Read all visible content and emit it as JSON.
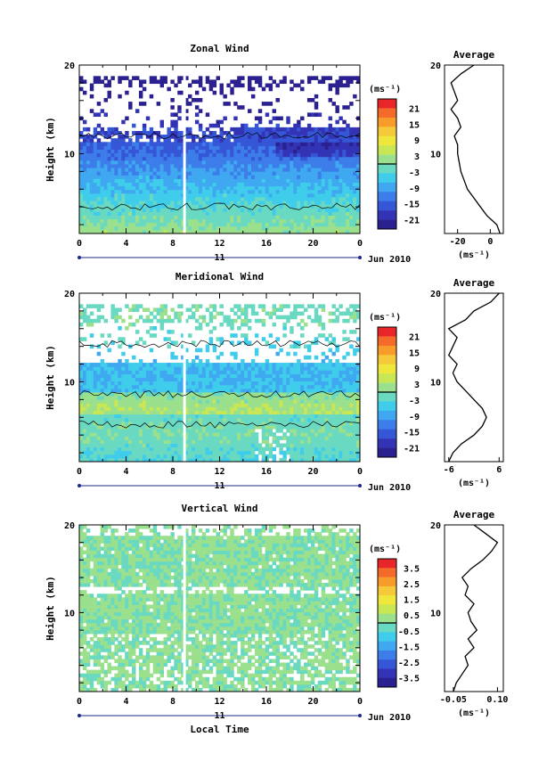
{
  "chart_data": [
    {
      "type": "heatmap",
      "title": "Zonal Wind",
      "ylabel": "Height (km)",
      "ylim": [
        1,
        20
      ],
      "y_ticks": [
        "10",
        "20"
      ],
      "x_ticks": [
        "0",
        "4",
        "8",
        "12",
        "16",
        "20",
        "0"
      ],
      "xlim": [
        0,
        24
      ],
      "date_row": {
        "day": "11",
        "month_year": "Jun 2010"
      },
      "colorbar": {
        "unit": "(ms⁻¹)",
        "ticks": [
          "21",
          "15",
          "9",
          "3",
          "-3",
          "-9",
          "-15",
          "-21"
        ],
        "colors": [
          "#E8262A",
          "#F46A2A",
          "#F79B2A",
          "#F6C93A",
          "#EFE73C",
          "#C9E655",
          "#9AE08D",
          "#6AD9C2",
          "#3FCDEB",
          "#3FA8F0",
          "#3C7DEA",
          "#3556D6",
          "#3334B5",
          "#2A2090"
        ]
      },
      "average_profile": {
        "title": "Average",
        "xlabel": "(ms⁻¹)",
        "x_ticks": [
          "-20",
          "0"
        ],
        "xlim": [
          -28,
          8
        ],
        "y_ticks": [
          "10",
          "20"
        ],
        "height_km": [
          1,
          2,
          3,
          4,
          5,
          6,
          7,
          8,
          9,
          10,
          11,
          12,
          13,
          14,
          15,
          16,
          17,
          18,
          19,
          20
        ],
        "values": [
          6,
          4,
          -2,
          -6,
          -10,
          -14,
          -16,
          -18,
          -19,
          -20,
          -20,
          -22,
          -18,
          -20,
          -24,
          -20,
          -22,
          -24,
          -18,
          -10
        ]
      }
    },
    {
      "type": "heatmap",
      "title": "Meridional Wind",
      "ylabel": "Height (km)",
      "ylim": [
        1,
        20
      ],
      "y_ticks": [
        "10",
        "20"
      ],
      "x_ticks": [
        "0",
        "4",
        "8",
        "12",
        "16",
        "20",
        "0"
      ],
      "xlim": [
        0,
        24
      ],
      "date_row": {
        "day": "11",
        "month_year": "Jun 2010"
      },
      "colorbar": {
        "unit": "(ms⁻¹)",
        "ticks": [
          "21",
          "15",
          "9",
          "3",
          "-3",
          "-9",
          "-15",
          "-21"
        ],
        "colors": [
          "#E8262A",
          "#F46A2A",
          "#F79B2A",
          "#F6C93A",
          "#EFE73C",
          "#C9E655",
          "#9AE08D",
          "#6AD9C2",
          "#3FCDEB",
          "#3FA8F0",
          "#3C7DEA",
          "#3556D6",
          "#3334B5",
          "#2A2090"
        ]
      },
      "average_profile": {
        "title": "Average",
        "xlabel": "(ms⁻¹)",
        "x_ticks": [
          "-6",
          "6"
        ],
        "xlim": [
          -7,
          7
        ],
        "y_ticks": [
          "10",
          "20"
        ],
        "height_km": [
          1,
          2,
          3,
          4,
          5,
          6,
          7,
          8,
          9,
          10,
          11,
          12,
          13,
          14,
          15,
          16,
          17,
          18,
          19,
          20
        ],
        "values": [
          -6,
          -5,
          -3,
          0,
          2,
          3,
          2,
          0,
          -2,
          -4,
          -5,
          -4,
          -6,
          -5,
          -4,
          -6,
          -2,
          0,
          4,
          6
        ]
      }
    },
    {
      "type": "heatmap",
      "title": "Vertical Wind",
      "ylabel": "Height (km)",
      "xlabel": "Local Time",
      "ylim": [
        1,
        20
      ],
      "y_ticks": [
        "10",
        "20"
      ],
      "x_ticks": [
        "0",
        "4",
        "8",
        "12",
        "16",
        "20",
        "0"
      ],
      "xlim": [
        0,
        24
      ],
      "date_row": {
        "day": "11",
        "month_year": "Jun 2010"
      },
      "colorbar": {
        "unit": "(ms⁻¹)",
        "ticks": [
          "3.5",
          "2.5",
          "1.5",
          "0.5",
          "-0.5",
          "-1.5",
          "-2.5",
          "-3.5"
        ],
        "colors": [
          "#E8262A",
          "#F46A2A",
          "#F79B2A",
          "#F6C93A",
          "#EFE73C",
          "#C9E655",
          "#9AE08D",
          "#6AD9C2",
          "#3FCDEB",
          "#3FA8F0",
          "#3C7DEA",
          "#3556D6",
          "#3334B5",
          "#2A2090"
        ]
      },
      "average_profile": {
        "title": "Average",
        "xlabel": "(ms⁻¹)",
        "x_ticks": [
          "-0.05",
          "0.10"
        ],
        "xlim": [
          -0.08,
          0.12
        ],
        "y_ticks": [
          "10",
          "20"
        ],
        "height_km": [
          1,
          2,
          3,
          4,
          5,
          6,
          7,
          8,
          9,
          10,
          11,
          12,
          13,
          14,
          15,
          16,
          17,
          18,
          19,
          20
        ],
        "values": [
          -0.05,
          -0.04,
          -0.02,
          0.0,
          -0.01,
          0.02,
          0.0,
          0.03,
          0.01,
          0.0,
          0.02,
          -0.01,
          0.0,
          -0.02,
          0.01,
          0.05,
          0.08,
          0.1,
          0.06,
          0.02
        ]
      }
    }
  ]
}
